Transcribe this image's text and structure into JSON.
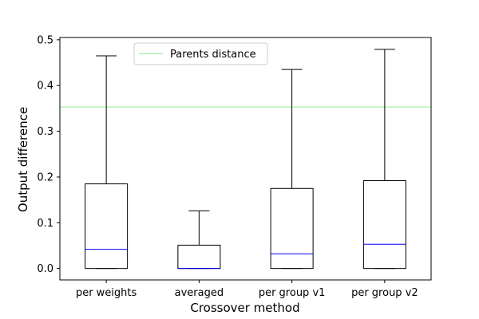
{
  "chart_data": {
    "type": "box",
    "xlabel": "Crossover method",
    "ylabel": "Output difference",
    "ylim": [
      -0.025,
      0.505
    ],
    "yticks": [
      0.0,
      0.1,
      0.2,
      0.3,
      0.4,
      0.5
    ],
    "ytick_labels": [
      "0.0",
      "0.1",
      "0.2",
      "0.3",
      "0.4",
      "0.5"
    ],
    "categories": [
      "per weights",
      "averaged",
      "per group v1",
      "per group v2"
    ],
    "boxes": [
      {
        "whisker_low": 0.0,
        "q1": 0.0,
        "median": 0.042,
        "q3": 0.185,
        "whisker_high": 0.465
      },
      {
        "whisker_low": 0.0,
        "q1": 0.0,
        "median": 0.0,
        "q3": 0.051,
        "whisker_high": 0.126
      },
      {
        "whisker_low": 0.0,
        "q1": 0.0,
        "median": 0.032,
        "q3": 0.175,
        "whisker_high": 0.435
      },
      {
        "whisker_low": 0.0,
        "q1": 0.0,
        "median": 0.053,
        "q3": 0.192,
        "whisker_high": 0.479
      }
    ],
    "reference_line": {
      "label": "Parents distance",
      "value": 0.353,
      "color": "#90ee90"
    },
    "median_color": "#0000ff",
    "box_color": "#000000",
    "legend_position": "upper-center",
    "grid": false
  }
}
